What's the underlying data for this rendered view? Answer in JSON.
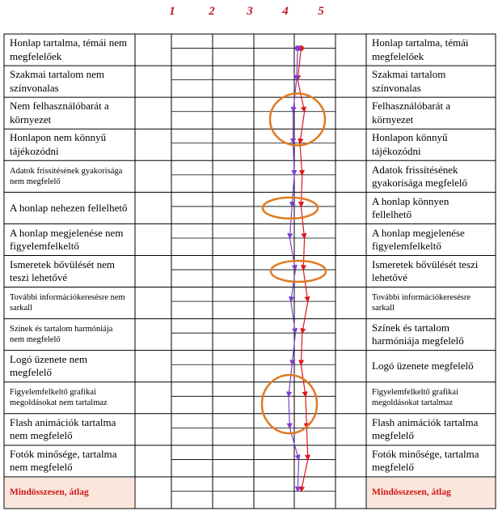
{
  "scale_labels": [
    "1",
    "2",
    "3",
    "4",
    "5"
  ],
  "rows": [
    {
      "left": "Honlap tartalma, témái nem megfelelőek",
      "right": "Honlap tartalma, témái megfelelőek",
      "size": "normal"
    },
    {
      "left": "Szakmai tartalom nem színvonalas",
      "right": "Szakmai tartalom színvonalas",
      "size": "normal"
    },
    {
      "left": "Nem felhasználóbarát a környezet",
      "right": "Felhasználóbarát a környezet",
      "size": "normal"
    },
    {
      "left": "Honlapon nem könnyű tájékozódni",
      "right": "Honlapon könnyű tájékozódni",
      "size": "normal"
    },
    {
      "left": "Adatok frissítésének gyakorisága nem megfelelő",
      "right": "Adatok frissítésének gyakorisága megfelelő",
      "size": "small-left"
    },
    {
      "left": "A honlap nehezen fellelhető",
      "right": "A honlap könnyen fellelhető",
      "size": "normal"
    },
    {
      "left": "A honlap megjelenése nem figyelemfelkeltő",
      "right": "A honlap megjelenése figyelemfelkeltő",
      "size": "normal"
    },
    {
      "left": "Ismeretek bővülését nem teszi lehetővé",
      "right": "Ismeretek bővülését teszi lehetővé",
      "size": "normal"
    },
    {
      "left": "További információkeresésre nem sarkall",
      "right": "További információkeresésre sarkall",
      "size": "small"
    },
    {
      "left": "Színek és tartalom harmóniája nem megfelelő",
      "right": "Színek és tartalom harmóniája megfelelő",
      "size": "small-left"
    },
    {
      "left": "Logó üzenete nem megfelelő",
      "right": "Logó üzenete megfelelő",
      "size": "normal"
    },
    {
      "left": "Figyelemfelkeltő grafikai megoldásokat nem tartalmaz",
      "right": "Figyelemfelkeltő grafikai megoldásokat tartalmaz",
      "size": "small"
    },
    {
      "left": "Flash animációk tartalma nem megfelelő",
      "right": "Flash animációk tartalma megfelelő",
      "size": "normal"
    },
    {
      "left": "Fotók minősége, tartalma nem megfelelő",
      "right": "Fotók minősége, tartalma megfelelő",
      "size": "normal"
    },
    {
      "left": "Mindösszesen, átlag",
      "right": "Mindösszesen, átlag",
      "size": "total"
    }
  ],
  "chart_data": {
    "type": "line",
    "x_scale": [
      1,
      2,
      3,
      4,
      5
    ],
    "series": [
      {
        "color": "#e0141e",
        "values": [
          4.3,
          4.15,
          4.45,
          4.25,
          4.35,
          4.3,
          4.45,
          4.4,
          4.6,
          4.35,
          4.3,
          4.5,
          4.55,
          4.6,
          4.3
        ]
      },
      {
        "color": "#7b3fd0",
        "values": [
          4.15,
          4.1,
          3.95,
          3.95,
          4.0,
          3.9,
          3.8,
          4.05,
          3.85,
          4.05,
          3.9,
          3.75,
          3.8,
          4.2,
          4.15
        ]
      }
    ],
    "highlight_color": "#e07a22"
  }
}
